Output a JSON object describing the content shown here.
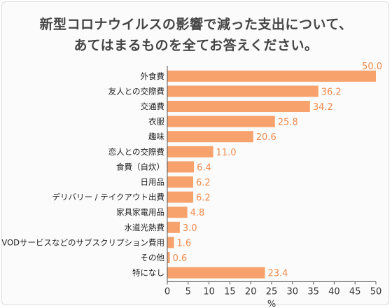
{
  "title_line1": "新型コロナウイルスの影響で減った支出について、",
  "title_line2": "あてはまるものを全てお答えください。",
  "chart_data": {
    "type": "bar",
    "orientation": "horizontal",
    "categories": [
      "外食費",
      "友人との交際費",
      "交通費",
      "衣服",
      "趣味",
      "恋人との交際費",
      "食費（自炊）",
      "日用品",
      "デリバリー / テイクアウト出費",
      "家具家電用品",
      "水道光熱費",
      "VODサービスなどのサブスクリプション費用",
      "その他",
      "特になし"
    ],
    "values": [
      50.0,
      36.2,
      34.2,
      25.8,
      20.6,
      11.0,
      6.4,
      6.2,
      6.2,
      4.8,
      3.0,
      1.6,
      0.6,
      23.4
    ],
    "value_labels": [
      "50.0",
      "36.2",
      "34.2",
      "25.8",
      "20.6",
      "11.0",
      "6.4",
      "6.2",
      "6.2",
      "4.8",
      "3.0",
      "1.6",
      "0.6",
      "23.4"
    ],
    "xticks": [
      0,
      5,
      10,
      15,
      20,
      25,
      30,
      35,
      40,
      45,
      50
    ],
    "xlim": [
      0,
      50
    ],
    "xlabel": "%",
    "bar_color": "#f7a26c",
    "label_color": "#f28a4a"
  }
}
